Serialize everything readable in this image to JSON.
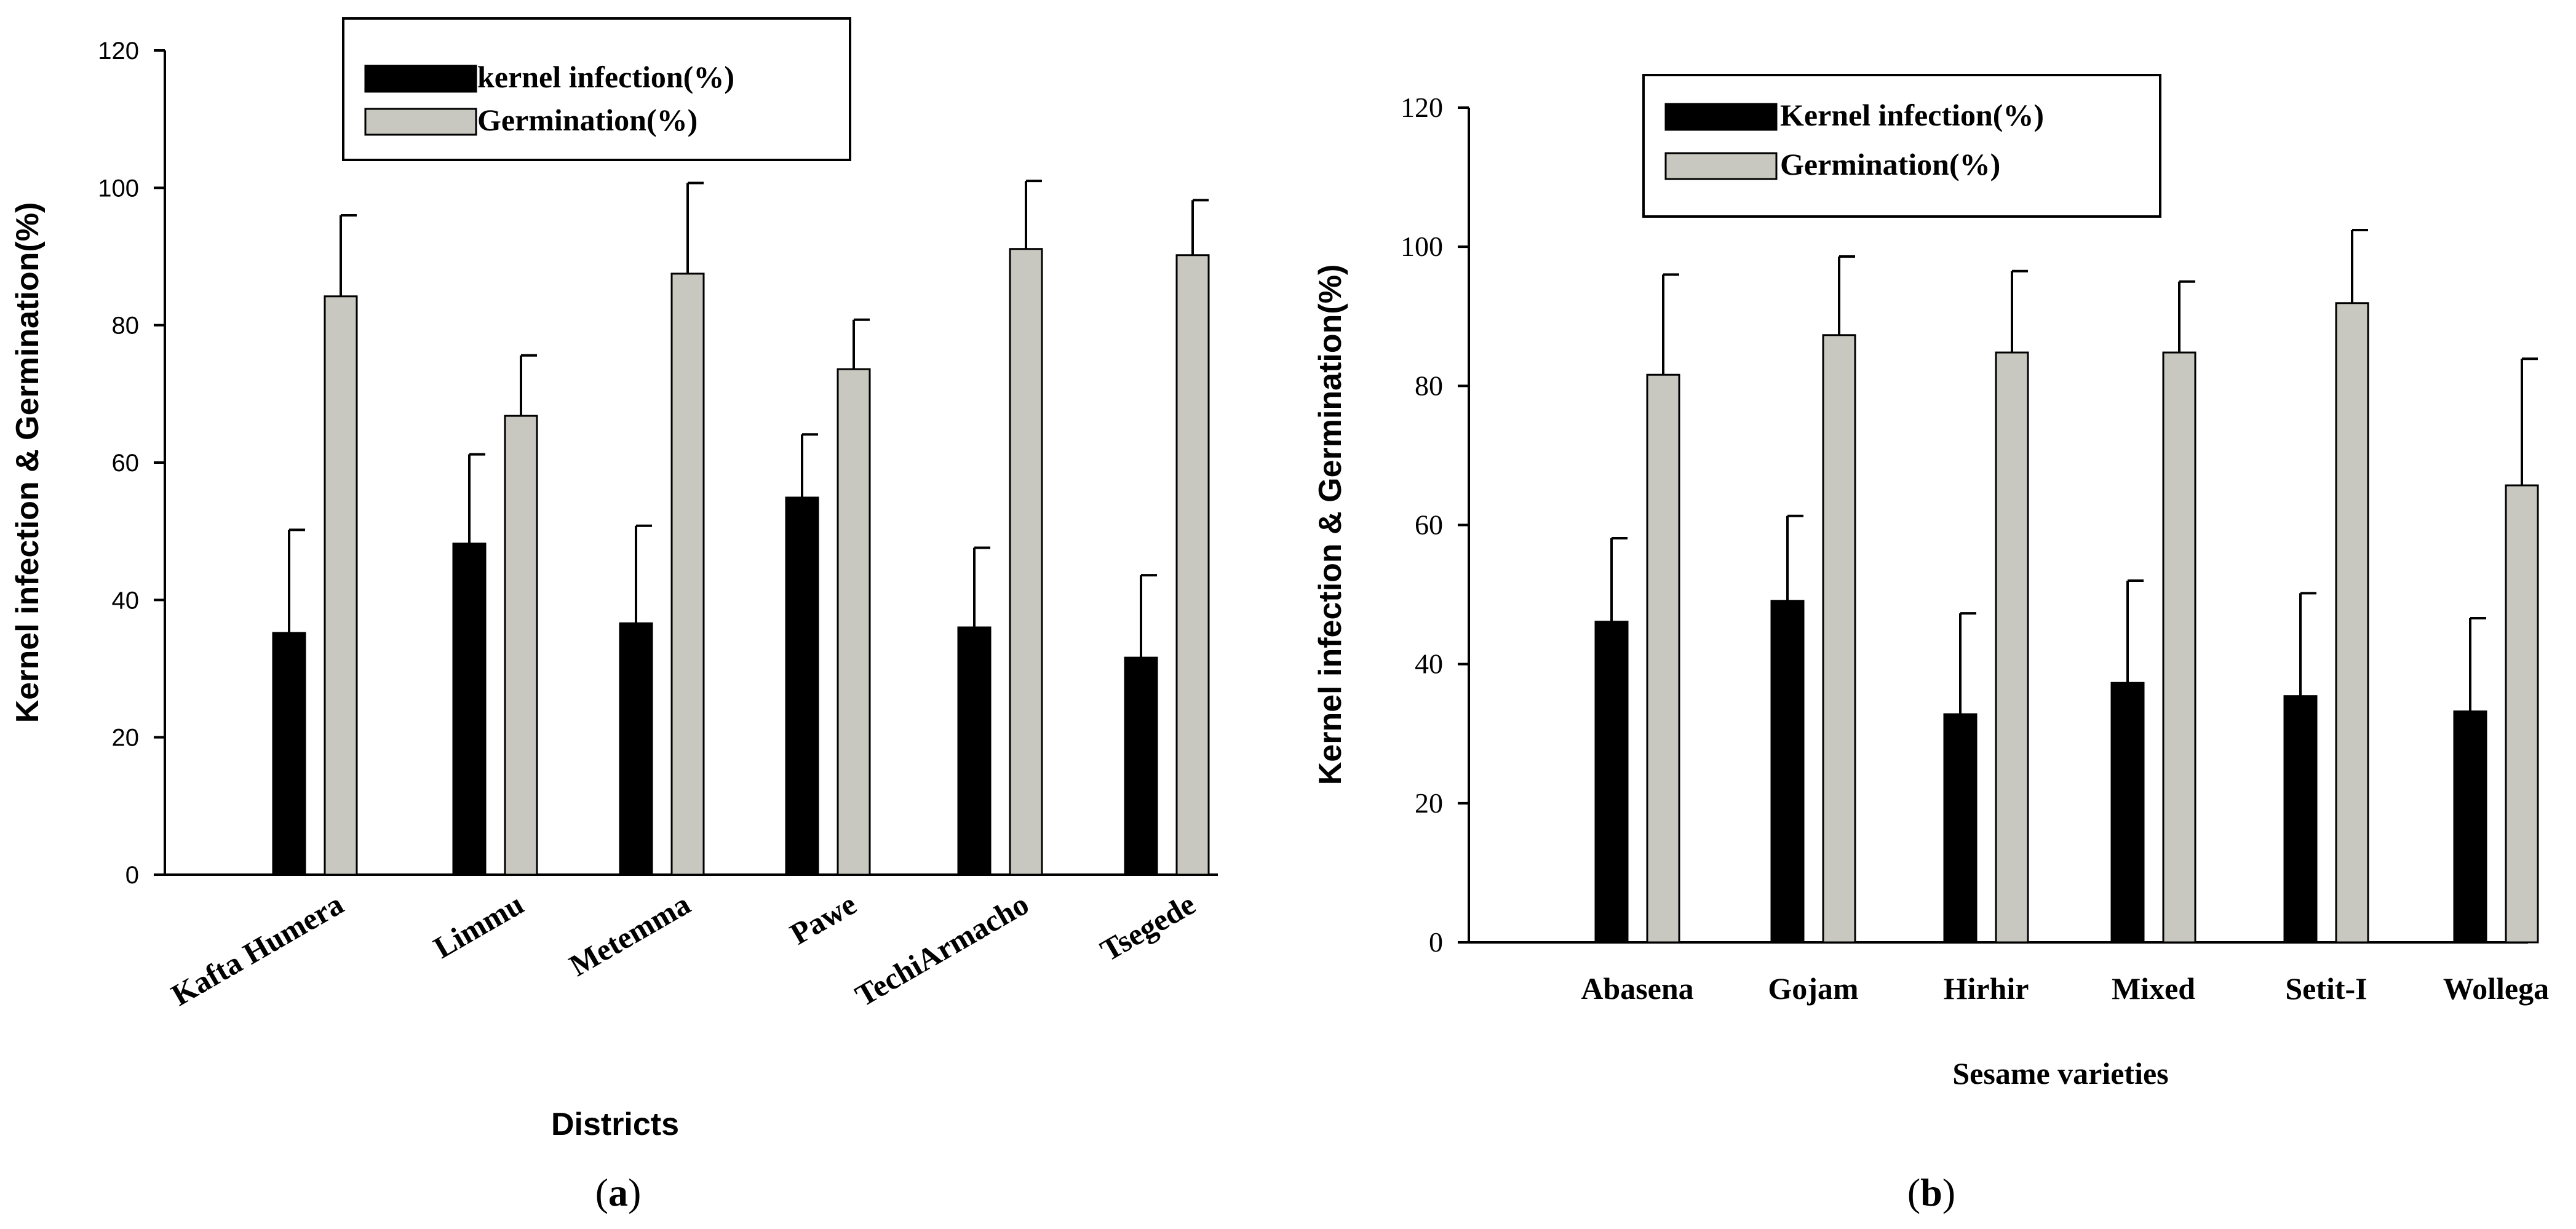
{
  "colors": {
    "kernel": "#000000",
    "germination": "#c8c8c0"
  },
  "chart_data": [
    {
      "type": "bar",
      "panel": "(a)",
      "panel_letter": "a",
      "title": "",
      "xlabel": "Districts",
      "ylabel": "Kernel infection & Germination(%)",
      "ylim": [
        0,
        120
      ],
      "yticks": [
        "0",
        "20",
        "40",
        "60",
        "80",
        "100",
        "120"
      ],
      "legend_placement": "top-center",
      "categories": [
        "Kafta Humera",
        "Limmu",
        "Metemma",
        "Pawe",
        "TechiArmacho",
        "Tsegede"
      ],
      "series": [
        {
          "name": "kernel infection(%)",
          "values": [
            35.2,
            48.2,
            36.6,
            54.9,
            36.0,
            31.6
          ],
          "errors": [
            15.0,
            13.0,
            14.2,
            9.2,
            11.6,
            12.0
          ]
        },
        {
          "name": "Germination(%)",
          "values": [
            84.2,
            66.8,
            87.5,
            73.6,
            91.1,
            90.2
          ],
          "errors": [
            11.8,
            8.8,
            13.2,
            7.2,
            9.9,
            8.0
          ]
        }
      ]
    },
    {
      "type": "bar",
      "panel": "(b)",
      "panel_letter": "b",
      "title": "",
      "xlabel": "Sesame varieties",
      "ylabel": "Kernel infection & Germination(%)",
      "ylim": [
        0,
        120
      ],
      "yticks": [
        "0",
        "20",
        "40",
        "60",
        "80",
        "100",
        "120"
      ],
      "legend_placement": "top-center",
      "categories": [
        "Abasena",
        "Gojam",
        "Hirhir",
        "Mixed",
        "Setit-I",
        "Wollega"
      ],
      "series": [
        {
          "name": "Kernel infection(%)",
          "values": [
            46.1,
            49.1,
            32.8,
            37.3,
            35.4,
            33.2
          ],
          "errors": [
            12.0,
            12.2,
            14.5,
            14.7,
            14.8,
            13.4
          ]
        },
        {
          "name": "Germination(%)",
          "values": [
            81.6,
            87.3,
            84.8,
            84.8,
            91.9,
            65.7
          ],
          "errors": [
            14.4,
            11.3,
            11.7,
            10.2,
            10.5,
            18.2
          ]
        }
      ]
    }
  ]
}
